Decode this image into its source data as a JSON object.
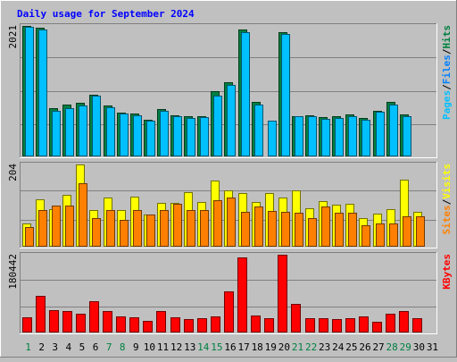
{
  "chart_data": [
    {
      "type": "bar",
      "title": "Daily usage for September 2024",
      "categories": [
        "1",
        "2",
        "3",
        "4",
        "5",
        "6",
        "7",
        "8",
        "9",
        "10",
        "11",
        "12",
        "13",
        "14",
        "15",
        "16",
        "17",
        "18",
        "19",
        "20",
        "21",
        "22",
        "23",
        "24",
        "25",
        "26",
        "27",
        "28",
        "29",
        "30",
        "31"
      ],
      "weekend_days": [
        1,
        7,
        8,
        14,
        15,
        21,
        22,
        28,
        29
      ],
      "ymax_label": "2021",
      "ylim": [
        0,
        2021
      ],
      "right_label": {
        "parts": [
          "Pages",
          "/",
          "Files",
          "/",
          "Hits"
        ]
      },
      "series": [
        {
          "name": "Hits",
          "color": "#008040",
          "values": [
            2021,
            2000,
            740,
            790,
            820,
            950,
            780,
            670,
            650,
            560,
            730,
            630,
            610,
            620,
            1000,
            1140,
            1960,
            830,
            0,
            1930,
            620,
            630,
            600,
            620,
            640,
            580,
            690,
            830,
            640,
            0,
            0
          ]
        },
        {
          "name": "Files",
          "color": "#00c0ff",
          "values": [
            2010,
            1970,
            700,
            740,
            780,
            940,
            750,
            650,
            630,
            540,
            700,
            610,
            590,
            600,
            930,
            1100,
            1920,
            790,
            540,
            1890,
            610,
            610,
            570,
            590,
            620,
            560,
            680,
            800,
            620,
            0,
            0
          ]
        }
      ]
    },
    {
      "type": "bar",
      "ymax_label": "204",
      "ylim": [
        0,
        204
      ],
      "right_label": {
        "parts": [
          "Sites",
          "/",
          "Visits"
        ]
      },
      "series": [
        {
          "name": "Visits",
          "color": "#ffff00",
          "values": [
            57,
            116,
            91,
            127,
            204,
            89,
            120,
            89,
            124,
            78,
            108,
            107,
            134,
            110,
            163,
            138,
            132,
            109,
            133,
            122,
            140,
            94,
            113,
            104,
            105,
            69,
            81,
            92,
            167,
            86,
            0
          ]
        },
        {
          "name": "Sites",
          "color": "#ff8000",
          "values": [
            47,
            89,
            100,
            100,
            157,
            70,
            89,
            65,
            89,
            78,
            90,
            105,
            90,
            90,
            114,
            120,
            85,
            99,
            88,
            85,
            84,
            69,
            98,
            82,
            82,
            51,
            56,
            55,
            74,
            73,
            0
          ]
        }
      ]
    },
    {
      "type": "bar",
      "ymax_label": "180442",
      "ylim": [
        0,
        180442
      ],
      "right_label": {
        "parts": [
          "KBytes"
        ]
      },
      "series": [
        {
          "name": "KBytes",
          "color": "#ff0000",
          "values": [
            34000,
            84000,
            50000,
            49000,
            41000,
            71000,
            48000,
            36000,
            33000,
            25000,
            48000,
            34000,
            30000,
            32000,
            36000,
            94000,
            175000,
            38000,
            32000,
            180442,
            66000,
            32000,
            32000,
            29000,
            31000,
            35000,
            24000,
            42000,
            49000,
            32000,
            0
          ]
        }
      ]
    }
  ]
}
